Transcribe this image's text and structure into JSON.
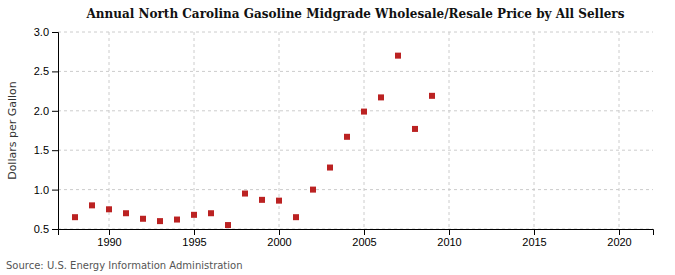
{
  "chart_data": {
    "type": "scatter",
    "title": "Annual North Carolina Gasoline Midgrade Wholesale/Resale Price by All Sellers",
    "ylabel": "Dollars per Gallon",
    "annotations": [
      "Source: U.S. Energy Information Administration"
    ],
    "x": [
      1988,
      1989,
      1990,
      1991,
      1992,
      1993,
      1994,
      1995,
      1996,
      1997,
      1998,
      1999,
      2000,
      2001,
      2002,
      2003,
      2004,
      2005,
      2006,
      2007,
      2008,
      2009
    ],
    "values": [
      0.65,
      0.8,
      0.75,
      0.7,
      0.63,
      0.6,
      0.62,
      0.68,
      0.7,
      0.55,
      0.95,
      0.87,
      0.86,
      0.65,
      1.0,
      1.28,
      1.67,
      1.99,
      2.17,
      2.7,
      1.77,
      2.19
    ],
    "color": "#bb2222",
    "marker": "square",
    "xlim": [
      1987,
      2022
    ],
    "ylim": [
      0.5,
      3.0
    ],
    "xticks": [
      1990,
      1995,
      2000,
      2005,
      2010,
      2015,
      2020
    ],
    "yticks": [
      0.5,
      {
        "value": 1.0,
        "label": "1.0"
      },
      1.5,
      {
        "value": 2.0,
        "label": "2.0"
      },
      2.5,
      {
        "value": 3.0,
        "label": "3.0"
      }
    ],
    "grid": true
  }
}
